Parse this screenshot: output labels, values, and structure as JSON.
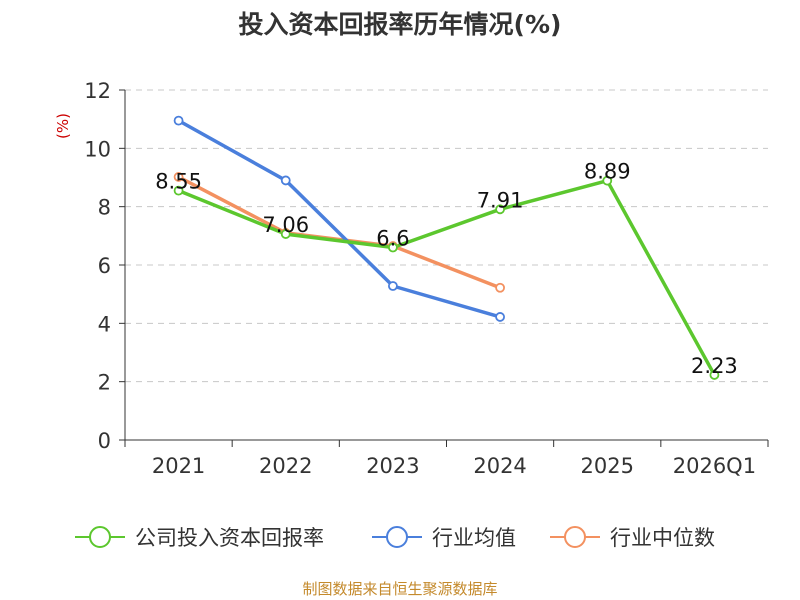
{
  "chart_data": {
    "type": "line",
    "title": "投入资本回报率历年情况(%)",
    "ylabel": "(%)",
    "categories": [
      "2021",
      "2022",
      "2023",
      "2024",
      "2025",
      "2026Q1"
    ],
    "ylim": [
      0,
      12
    ],
    "yticks": [
      0,
      2,
      4,
      6,
      8,
      10,
      12
    ],
    "grid": true,
    "legend_position": "bottom",
    "series": [
      {
        "name": "公司投入资本回报率",
        "color": "#5cc72e",
        "values": [
          8.55,
          7.06,
          6.6,
          7.91,
          8.89,
          2.23
        ],
        "labels": [
          "8.55",
          "7.06",
          "6.6",
          "7.91",
          "8.89",
          "2.23"
        ],
        "show_labels": true
      },
      {
        "name": "行业均值",
        "color": "#4a7fdc",
        "values": [
          10.95,
          8.9,
          5.28,
          4.22,
          null,
          null
        ],
        "show_labels": false
      },
      {
        "name": "行业中位数",
        "color": "#f39160",
        "values": [
          9.02,
          7.1,
          6.65,
          5.22,
          null,
          null
        ],
        "show_labels": false
      }
    ]
  },
  "source": "制图数据来自恒生聚源数据库"
}
